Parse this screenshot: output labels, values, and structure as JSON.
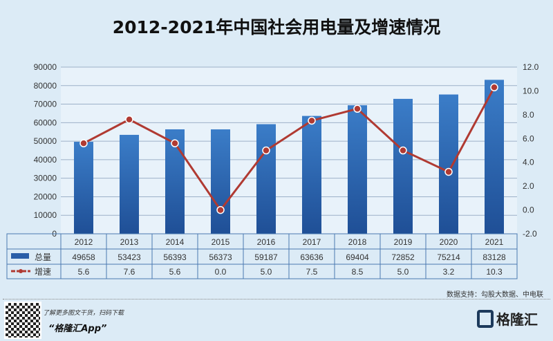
{
  "chart_data": {
    "type": "bar+line",
    "title": "2012-2021年中国社会用电量及增速情况",
    "categories": [
      "2012",
      "2013",
      "2014",
      "2015",
      "2016",
      "2017",
      "2018",
      "2019",
      "2020",
      "2021"
    ],
    "series": [
      {
        "name": "总量",
        "type": "bar",
        "axis": "left",
        "color": "#2a66b0",
        "values": [
          49658,
          53423,
          56393,
          56373,
          59187,
          63636,
          69404,
          72852,
          75214,
          83128
        ]
      },
      {
        "name": "增速",
        "type": "line",
        "axis": "right",
        "color": "#b03a32",
        "values_label": [
          "5.6",
          "7.6",
          "5.6",
          "0.0",
          "5.0",
          "7.5",
          "8.5",
          "5.0",
          "3.2",
          "10.3"
        ],
        "values": [
          5.6,
          7.6,
          5.6,
          0.0,
          5.0,
          7.5,
          8.5,
          5.0,
          3.2,
          10.3
        ]
      }
    ],
    "y_left": {
      "range": [
        0,
        90000
      ],
      "ticks": [
        "0",
        "10000",
        "20000",
        "30000",
        "40000",
        "50000",
        "60000",
        "70000",
        "80000",
        "90000"
      ]
    },
    "y_right": {
      "range": [
        -2,
        12
      ],
      "ticks": [
        "-2.0",
        "0.0",
        "2.0",
        "4.0",
        "6.0",
        "8.0",
        "10.0",
        "12.0"
      ]
    },
    "grid": true,
    "legend": "data-table"
  },
  "source": "数据支持：勾股大数据、中电联",
  "footer": {
    "promo": "了解更多图文干货，扫码下载",
    "app": "“格隆汇App”",
    "brand": "格隆汇"
  },
  "watermark": "格隆汇  勾股大数据"
}
